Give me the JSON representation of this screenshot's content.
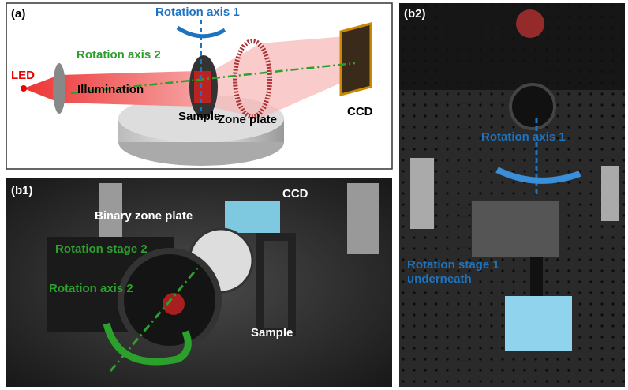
{
  "panels": [
    {
      "label": "(a)",
      "annotations": [
        "Rotation axis 1",
        "Rotation axis 2",
        "LED",
        "Illumination",
        "Sample",
        "Zone plate",
        "CCD"
      ]
    },
    {
      "label": "(b1)",
      "annotations": [
        "CCD",
        "Binary zone plate",
        "Rotation stage 2",
        "Rotation axis 2",
        "Sample"
      ]
    },
    {
      "label": "(b2)",
      "annotations": [
        "Rotation axis 1",
        "Rotation stage 1",
        "underneath"
      ]
    }
  ]
}
